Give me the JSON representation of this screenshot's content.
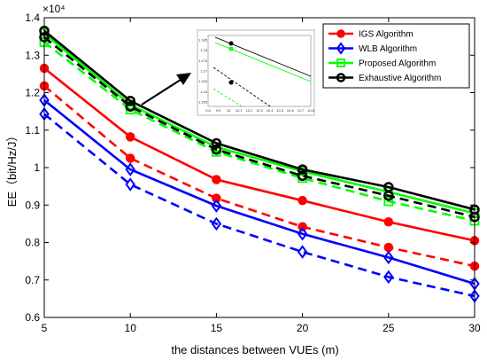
{
  "chart_data": {
    "type": "line",
    "xlabel": "the distances between VUEs (m)",
    "ylabel": "EE（bit/Hz/J）",
    "y_exponent_label": "×10⁴",
    "x": [
      5,
      10,
      15,
      20,
      25,
      30
    ],
    "xticks": [
      "5",
      "10",
      "15",
      "20",
      "25",
      "30"
    ],
    "yticks": [
      "0.6",
      "0.7",
      "0.8",
      "0.9",
      "1",
      "1.1",
      "1.2",
      "1.3",
      "1.4"
    ],
    "xlim": [
      5,
      30
    ],
    "ylim": [
      0.6,
      1.4
    ],
    "legend_position": "top-right",
    "legend": [
      {
        "name": "IGS Algorithm",
        "color": "#ff0000",
        "marker": "circle-filled"
      },
      {
        "name": "WLB Algorithm",
        "color": "#0000ff",
        "marker": "diamond"
      },
      {
        "name": "Proposed Algorithm",
        "color": "#00ff00",
        "marker": "square"
      },
      {
        "name": "Exhaustive Algorithm",
        "color": "#000000",
        "marker": "circle-open"
      }
    ],
    "series": [
      {
        "color": "#ff0000",
        "dash": "solid",
        "marker": "circle-filled",
        "values": [
          1.265,
          1.082,
          0.968,
          0.912,
          0.855,
          0.805
        ]
      },
      {
        "color": "#ff0000",
        "dash": "dashed",
        "marker": "circle-filled",
        "values": [
          1.218,
          1.025,
          0.918,
          0.842,
          0.787,
          0.737
        ]
      },
      {
        "color": "#0000ff",
        "dash": "solid",
        "marker": "diamond",
        "values": [
          1.18,
          0.995,
          0.898,
          0.823,
          0.76,
          0.69
        ]
      },
      {
        "color": "#0000ff",
        "dash": "dashed",
        "marker": "diamond",
        "values": [
          1.143,
          0.955,
          0.85,
          0.775,
          0.708,
          0.657
        ]
      },
      {
        "color": "#00ff00",
        "dash": "solid",
        "marker": "square",
        "values": [
          1.358,
          1.168,
          1.055,
          0.99,
          0.935,
          0.878
        ]
      },
      {
        "color": "#00ff00",
        "dash": "dashed",
        "marker": "square",
        "values": [
          1.335,
          1.155,
          1.042,
          0.972,
          0.91,
          0.858
        ]
      },
      {
        "color": "#000000",
        "dash": "solid",
        "marker": "circle-open",
        "values": [
          1.365,
          1.178,
          1.065,
          0.995,
          0.948,
          0.888
        ]
      },
      {
        "color": "#000000",
        "dash": "dashed",
        "marker": "circle-open",
        "values": [
          1.348,
          1.163,
          1.048,
          0.978,
          0.925,
          0.868
        ]
      }
    ],
    "inset": {
      "xticks": [
        "9.8",
        "9.9",
        "10",
        "10.1",
        "10.2",
        "10.3",
        "10.4",
        "10.5",
        "10.6",
        "10.7",
        "10.8"
      ],
      "yticks": [
        "1.185",
        "1.18",
        "1.175",
        "1.17",
        "1.165",
        "1.16",
        "1.155"
      ]
    }
  }
}
